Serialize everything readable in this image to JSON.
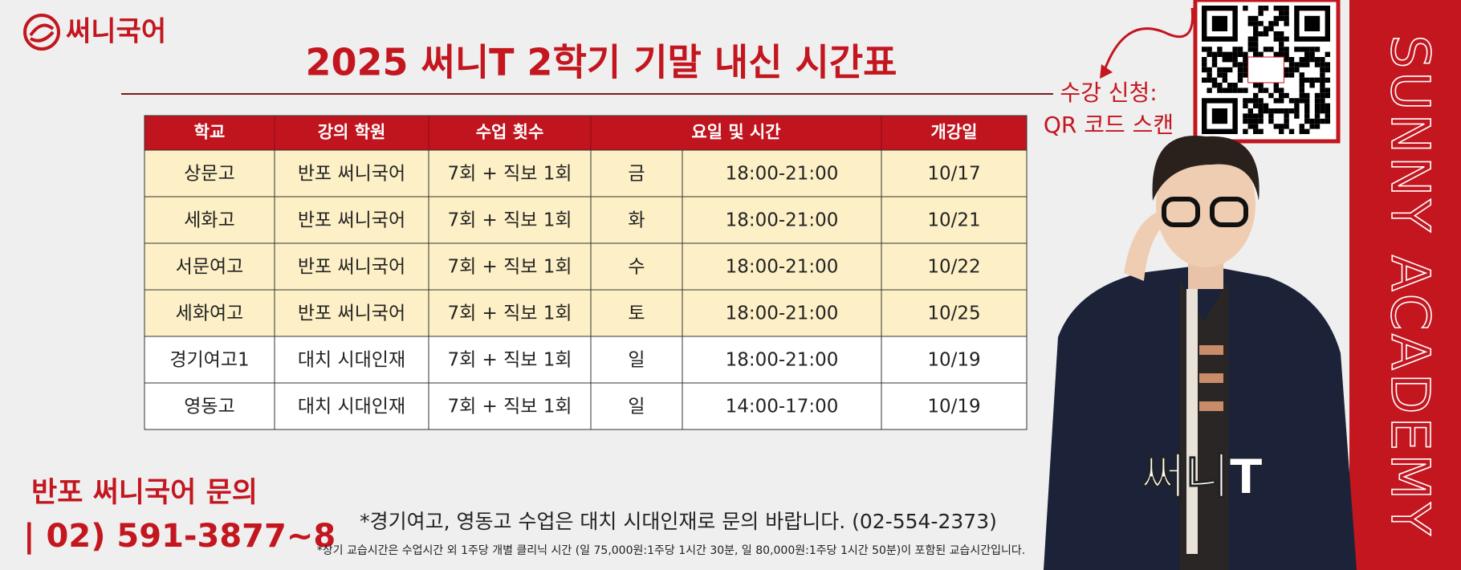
{
  "logo": "써니국어",
  "title": "2025 써니T 2학기 기말 내신 시간표",
  "table": {
    "header": [
      "학교",
      "강의 학원",
      "수업 횟수",
      "요일 및 시간",
      "개강일"
    ],
    "rows": [
      [
        "상문고",
        "반포 써니국어",
        "7회 + 직보 1회",
        "금",
        "18:00-21:00",
        "10/17"
      ],
      [
        "세화고",
        "반포 써니국어",
        "7회 + 직보 1회",
        "화",
        "18:00-21:00",
        "10/21"
      ],
      [
        "서문여고",
        "반포 써니국어",
        "7회 + 직보 1회",
        "수",
        "18:00-21:00",
        "10/22"
      ],
      [
        "세화여고",
        "반포 써니국어",
        "7회 + 직보 1회",
        "토",
        "18:00-21:00",
        "10/25"
      ],
      [
        "경기여고1",
        "대치 시대인재",
        "7회 + 직보 1회",
        "일",
        "18:00-21:00",
        "10/19"
      ],
      [
        "영동고",
        "대치 시대인재",
        "7회 + 직보 1회",
        "일",
        "14:00-17:00",
        "10/19"
      ]
    ]
  },
  "qr_caption": [
    "수강 신청:",
    "QR 코드 스캔"
  ],
  "side_text": "SUNNY ACADEMY",
  "photo_label": "써니T",
  "contact": {
    "title": "반포 써니국어 문의",
    "phone": "| 02) 591-3877~8"
  },
  "notice": "*경기여고, 영동고 수업은 대치 시대인재로 문의 바랍니다. (02-554-2373)",
  "footnote": "*상기 교습시간은 수업시간 외 1주당 개별 클리닉 시간 (일 75,000원:1주당 1시간 30분, 일 80,000원:1주당 1시간 50분)이 포함된 교습시간입니다."
}
